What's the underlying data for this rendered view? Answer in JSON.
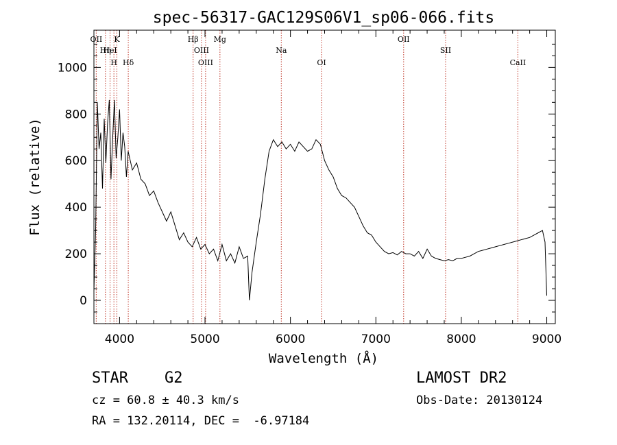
{
  "chart_data": {
    "type": "line",
    "title": "spec-56317-GAC129S06V1_sp06-066.fits",
    "xlabel": "Wavelength (Å)",
    "ylabel": "Flux (relative)",
    "xlim": [
      3700,
      9100
    ],
    "ylim": [
      -100,
      1160
    ],
    "xticks": [
      4000,
      5000,
      6000,
      7000,
      8000,
      9000
    ],
    "yticks": [
      0,
      200,
      400,
      600,
      800,
      1000
    ],
    "grid": false,
    "x": [
      3700,
      3720,
      3740,
      3760,
      3780,
      3800,
      3820,
      3840,
      3860,
      3880,
      3900,
      3920,
      3940,
      3960,
      3980,
      4000,
      4020,
      4040,
      4060,
      4080,
      4100,
      4150,
      4200,
      4250,
      4300,
      4350,
      4400,
      4450,
      4500,
      4550,
      4600,
      4650,
      4700,
      4750,
      4800,
      4850,
      4900,
      4950,
      5000,
      5050,
      5100,
      5150,
      5200,
      5250,
      5300,
      5350,
      5400,
      5450,
      5500,
      5520,
      5550,
      5600,
      5650,
      5700,
      5750,
      5800,
      5850,
      5900,
      5950,
      6000,
      6050,
      6100,
      6150,
      6200,
      6250,
      6300,
      6350,
      6400,
      6450,
      6500,
      6550,
      6600,
      6650,
      6700,
      6750,
      6800,
      6850,
      6900,
      6950,
      7000,
      7050,
      7100,
      7150,
      7200,
      7250,
      7300,
      7350,
      7400,
      7450,
      7500,
      7550,
      7600,
      7650,
      7700,
      7750,
      7800,
      7850,
      7900,
      7950,
      8000,
      8050,
      8100,
      8150,
      8200,
      8250,
      8300,
      8350,
      8400,
      8450,
      8500,
      8550,
      8600,
      8650,
      8700,
      8750,
      8800,
      8850,
      8900,
      8950,
      8980,
      9000
    ],
    "y": [
      40,
      300,
      850,
      650,
      720,
      480,
      780,
      590,
      760,
      860,
      520,
      700,
      860,
      610,
      700,
      820,
      600,
      720,
      660,
      530,
      640,
      560,
      590,
      520,
      500,
      450,
      470,
      420,
      380,
      340,
      380,
      320,
      260,
      290,
      250,
      230,
      270,
      220,
      240,
      200,
      220,
      170,
      240,
      170,
      200,
      160,
      230,
      180,
      190,
      0,
      120,
      250,
      370,
      520,
      640,
      690,
      660,
      680,
      650,
      670,
      640,
      680,
      660,
      640,
      650,
      690,
      670,
      600,
      560,
      530,
      480,
      450,
      440,
      420,
      400,
      360,
      320,
      290,
      280,
      250,
      230,
      210,
      200,
      205,
      195,
      210,
      200,
      200,
      190,
      210,
      180,
      220,
      190,
      180,
      175,
      170,
      175,
      170,
      180,
      180,
      185,
      190,
      200,
      210,
      215,
      220,
      225,
      230,
      235,
      240,
      245,
      250,
      255,
      260,
      265,
      270,
      280,
      290,
      300,
      250,
      20
    ],
    "lines": [
      {
        "label": "OII",
        "x": 3727
      },
      {
        "label": "Hη",
        "x": 3835
      },
      {
        "label": "H",
        "x": 3934
      },
      {
        "label": "K",
        "x": 3969
      },
      {
        "label": "HeI",
        "x": 3889
      },
      {
        "label": "Hδ",
        "x": 4102
      },
      {
        "label": "Hβ",
        "x": 4861
      },
      {
        "label": "OIII",
        "x": 4959
      },
      {
        "label": "OIII",
        "x": 5007
      },
      {
        "label": "Mg",
        "x": 5175
      },
      {
        "label": "Na",
        "x": 5893
      },
      {
        "label": "OI",
        "x": 6364
      },
      {
        "label": "OII",
        "x": 7325
      },
      {
        "label": "SII",
        "x": 7816
      },
      {
        "label": "CaII",
        "x": 8662
      }
    ]
  },
  "info": {
    "class_label": "STAR    G2",
    "survey": "LAMOST DR2",
    "cz": "cz = 60.8 ± 40.3 km/s",
    "obs_date": "Obs-Date: 20130124",
    "coords": "RA = 132.20114, DEC =  -6.97184"
  },
  "colors": {
    "line_marker": "#c0392b",
    "spectrum": "#000000",
    "axes": "#000000"
  }
}
